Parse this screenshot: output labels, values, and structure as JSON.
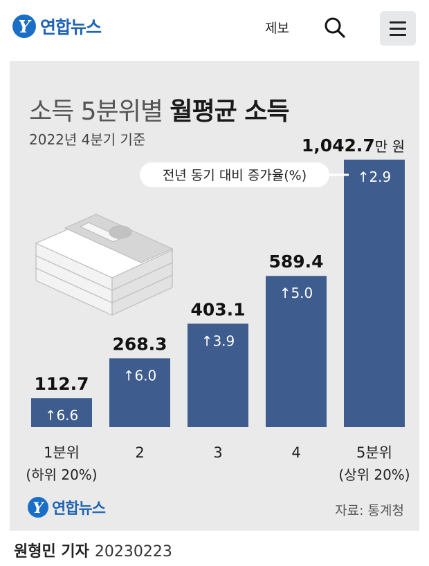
{
  "header": {
    "logo_text": "연합뉴스",
    "report_label": "제보",
    "search_icon": "search-icon",
    "menu_icon": "hamburger-menu-icon"
  },
  "infographic": {
    "title_light": "소득 5분위별 ",
    "title_bold": "월평균 소득",
    "subtitle": "2022년 4분기 기준",
    "source": "자료: 통계청",
    "logo_text": "연합뉴스",
    "illustration": "money-stack-icon"
  },
  "colors": {
    "bar": "#3e5d8e",
    "background": "#eaeaea",
    "logo_blue": "#1f63b3"
  },
  "chart_data": {
    "type": "bar",
    "title": "소득 5분위별 월평균 소득",
    "subtitle": "2022년 4분기 기준",
    "unit": "만 원",
    "annotation": "전년 동기 대비 증가율(%)",
    "categories": [
      {
        "label": "1분위",
        "sublabel": "(하위 20%)"
      },
      {
        "label": "2",
        "sublabel": ""
      },
      {
        "label": "3",
        "sublabel": ""
      },
      {
        "label": "4",
        "sublabel": ""
      },
      {
        "label": "5분위",
        "sublabel": "(상위 20%)"
      }
    ],
    "values": [
      112.7,
      268.3,
      403.1,
      589.4,
      1042.7
    ],
    "value_labels": [
      "112.7",
      "268.3",
      "403.1",
      "589.4",
      "1,042.7"
    ],
    "growth_labels": [
      "↑6.6",
      "↑6.0",
      "↑3.9",
      "↑5.0",
      "↑2.9"
    ],
    "ylim": [
      0,
      1042.7
    ],
    "grid": false,
    "legend": "none"
  },
  "byline": {
    "reporter": "원형민 기자",
    "date": "20230223"
  }
}
